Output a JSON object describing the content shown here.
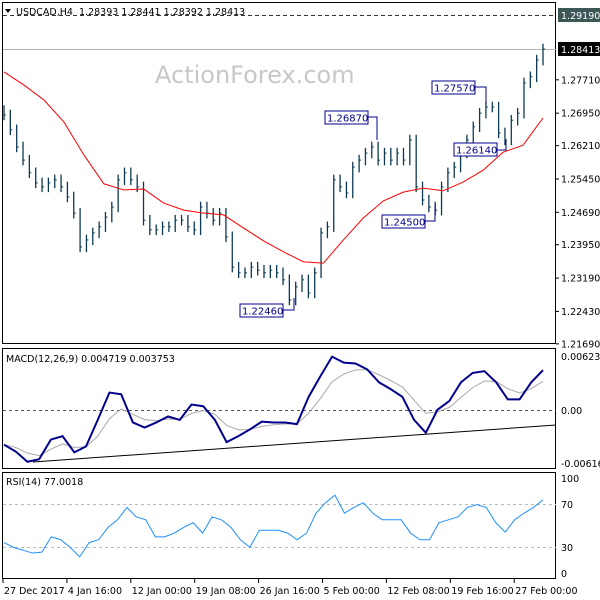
{
  "header": {
    "symbol": "USDCAD,H4",
    "ohlc": "1.28393 1.28441 1.28392 1.28413"
  },
  "watermark": "ActionForex.com",
  "colors": {
    "bars": "#0d3a52",
    "ma": "#ff0000",
    "macd": "#00008b",
    "signal": "#a9a9a9",
    "rsi": "#1e90ff",
    "annotation": "#00008b"
  },
  "chart_data": [
    {
      "type": "line",
      "title": "USDCAD,H4",
      "ylim": [
        1.2169,
        1.2919
      ],
      "y_ticks": [
        "1.29190",
        "1.28413",
        "1.27710",
        "1.26950",
        "1.26210",
        "1.25450",
        "1.24690",
        "1.23950",
        "1.23190",
        "1.22430",
        "1.21690"
      ],
      "x_ticks": [
        "27 Dec 2017",
        "4 Jan 16:00",
        "12 Jan 00:00",
        "19 Jan 08:00",
        "26 Jan 16:00",
        "5 Feb 00:00",
        "12 Feb 08:00",
        "19 Feb 16:00",
        "27 Feb 00:00"
      ],
      "resistance_level": "1.29190",
      "current_price": "1.28413",
      "annotations": [
        "1.26870",
        "1.27570",
        "1.26140",
        "1.24500",
        "1.22460"
      ],
      "series": [
        {
          "type": "bar",
          "close": [
            1.2691,
            1.2657,
            1.2618,
            1.2588,
            1.2559,
            1.2536,
            1.2527,
            1.2536,
            1.2543,
            1.2527,
            1.2504,
            1.2467,
            1.239,
            1.2406,
            1.2422,
            1.2436,
            1.2458,
            1.2481,
            1.2543,
            1.2559,
            1.2543,
            1.2527,
            1.2451,
            1.2429,
            1.2429,
            1.2436,
            1.2436,
            1.2451,
            1.2451,
            1.2436,
            1.2429,
            1.2481,
            1.2467,
            1.2451,
            1.2467,
            1.2413,
            1.2344,
            1.2331,
            1.2331,
            1.2344,
            1.2337,
            1.2331,
            1.2337,
            1.2331,
            1.2315,
            1.2269,
            1.2299,
            1.2315,
            1.2285,
            1.2331,
            1.2422,
            1.2436,
            1.2543,
            1.2527,
            1.2513,
            1.2572,
            1.2588,
            1.2604,
            1.2618,
            1.2588,
            1.2604,
            1.2588,
            1.2604,
            1.2588,
            1.2634,
            1.2527,
            1.2497,
            1.2481,
            1.2474,
            1.2527,
            1.2559,
            1.2572,
            1.2604,
            1.2634,
            1.2664,
            1.2695,
            1.2709,
            1.2709,
            1.265,
            1.2634,
            1.2679,
            1.2695,
            1.2764,
            1.2778,
            1.2816,
            1.28413
          ]
        },
        {
          "type": "line",
          "values": [
            1.2789,
            1.2759,
            1.2725,
            1.2675,
            1.26,
            1.2534,
            1.252,
            1.2522,
            1.249,
            1.2474,
            1.2467,
            1.2463,
            1.2433,
            1.2404,
            1.2379,
            1.2356,
            1.2353,
            1.2406,
            1.2456,
            1.2495,
            1.2515,
            1.2524,
            1.2518,
            1.2538,
            1.2565,
            1.2606,
            1.2622,
            1.2684
          ]
        }
      ]
    },
    {
      "type": "line",
      "title": "MACD(12,26,9) 0.004719 0.003753",
      "ylim": [
        -0.006163,
        0.006232
      ],
      "y_ticks": [
        "0.006232",
        "0.00",
        "-0.006163"
      ],
      "series": [
        {
          "values": [
            -0.004,
            -0.0048,
            -0.006,
            -0.0057,
            -0.0034,
            -0.003,
            -0.0049,
            -0.0042,
            -0.0011,
            0.0021,
            0.0019,
            -0.0014,
            -0.002,
            -0.0014,
            -0.0007,
            -0.0011,
            0.0007,
            0.0005,
            -0.0011,
            -0.0037,
            -0.003,
            -0.0022,
            -0.0013,
            -0.0014,
            -0.0014,
            -0.0016,
            0.0016,
            0.004,
            0.0063,
            0.0056,
            0.0055,
            0.0048,
            0.0033,
            0.0025,
            0.0016,
            -0.0011,
            -0.0026,
            0.0001,
            0.0011,
            0.0033,
            0.0044,
            0.0046,
            0.0033,
            0.0013,
            0.0013,
            0.0033,
            0.004719
          ]
        }
      ]
    },
    {
      "type": "line",
      "title": "RSI(14) 77.0018",
      "ylim": [
        0,
        100
      ],
      "y_ticks": [
        "100",
        "70",
        "30",
        "0"
      ],
      "series": [
        {
          "values": [
            32,
            27,
            24,
            21,
            22,
            38,
            35,
            27,
            17,
            32,
            35,
            48,
            56,
            69,
            59,
            56,
            38,
            38,
            42,
            48,
            53,
            42,
            59,
            56,
            48,
            35,
            27,
            45,
            45,
            45,
            42,
            35,
            42,
            63,
            74,
            82,
            63,
            69,
            74,
            63,
            56,
            56,
            56,
            42,
            35,
            35,
            53,
            56,
            59,
            69,
            72,
            69,
            53,
            43,
            56,
            63,
            69,
            77
          ]
        }
      ]
    }
  ]
}
